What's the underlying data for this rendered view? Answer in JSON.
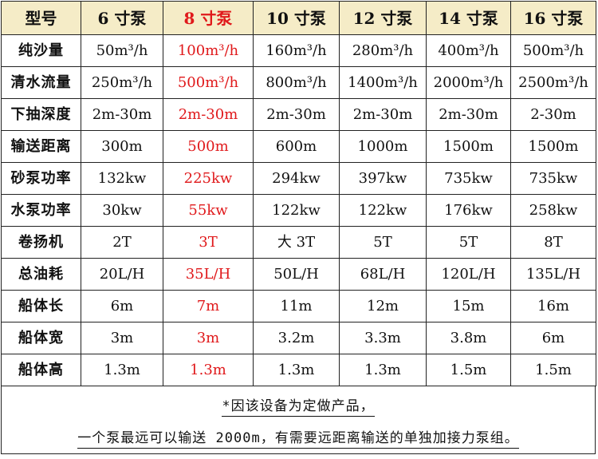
{
  "table": {
    "header": [
      "型号",
      "6 寸泵",
      "8 寸泵",
      "10 寸泵",
      "12 寸泵",
      "14 寸泵",
      "16 寸泵"
    ],
    "highlight_column_index": 2,
    "highlight_color": "#e0191b",
    "header_background": "#f5ecc7",
    "rows": [
      {
        "label": "纯沙量",
        "cells": [
          "50m³/h",
          "100m³/h",
          "160m³/h",
          "280m³/h",
          "400m³/h",
          "500m³/h"
        ]
      },
      {
        "label": "清水流量",
        "cells": [
          "250m³/h",
          "500m³/h",
          "800m³/h",
          "1400m³/h",
          "2000m³/h",
          "2500m³/h"
        ]
      },
      {
        "label": "下抽深度",
        "cells": [
          "2m-30m",
          "2m-30m",
          "2m-30m",
          "2m-30m",
          "2m-30m",
          "2-30m"
        ]
      },
      {
        "label": "输送距离",
        "cells": [
          "300m",
          "500m",
          "600m",
          "1000m",
          "1500m",
          "1500m"
        ]
      },
      {
        "label": "砂泵功率",
        "cells": [
          "132kw",
          "225kw",
          "294kw",
          "397kw",
          "735kw",
          "735kw"
        ]
      },
      {
        "label": "水泵功率",
        "cells": [
          "30kw",
          "55kw",
          "122kw",
          "122kw",
          "176kw",
          "258kw"
        ]
      },
      {
        "label": "卷扬机",
        "cells": [
          "2T",
          "3T",
          "大 3T",
          "5T",
          "5T",
          "8T"
        ]
      },
      {
        "label": "总油耗",
        "cells": [
          "20L/H",
          "35L/H",
          "50L/H",
          "68L/H",
          "120L/H",
          "135L/H"
        ]
      },
      {
        "label": "船体长",
        "cells": [
          "6m",
          "7m",
          "11m",
          "12m",
          "15m",
          "16m"
        ]
      },
      {
        "label": "船体宽",
        "cells": [
          "3m",
          "3m",
          "3.2m",
          "3.3m",
          "3.8m",
          "6m"
        ]
      },
      {
        "label": "船体高",
        "cells": [
          "1.3m",
          "1.3m",
          "1.3m",
          "1.3m",
          "1.5m",
          "1.5m"
        ]
      }
    ]
  },
  "notes": {
    "line1": "*因该设备为定做产品，",
    "line2": "一个泵最远可以输送 2000m，有需要远距离输送的单独加接力泵组。"
  }
}
